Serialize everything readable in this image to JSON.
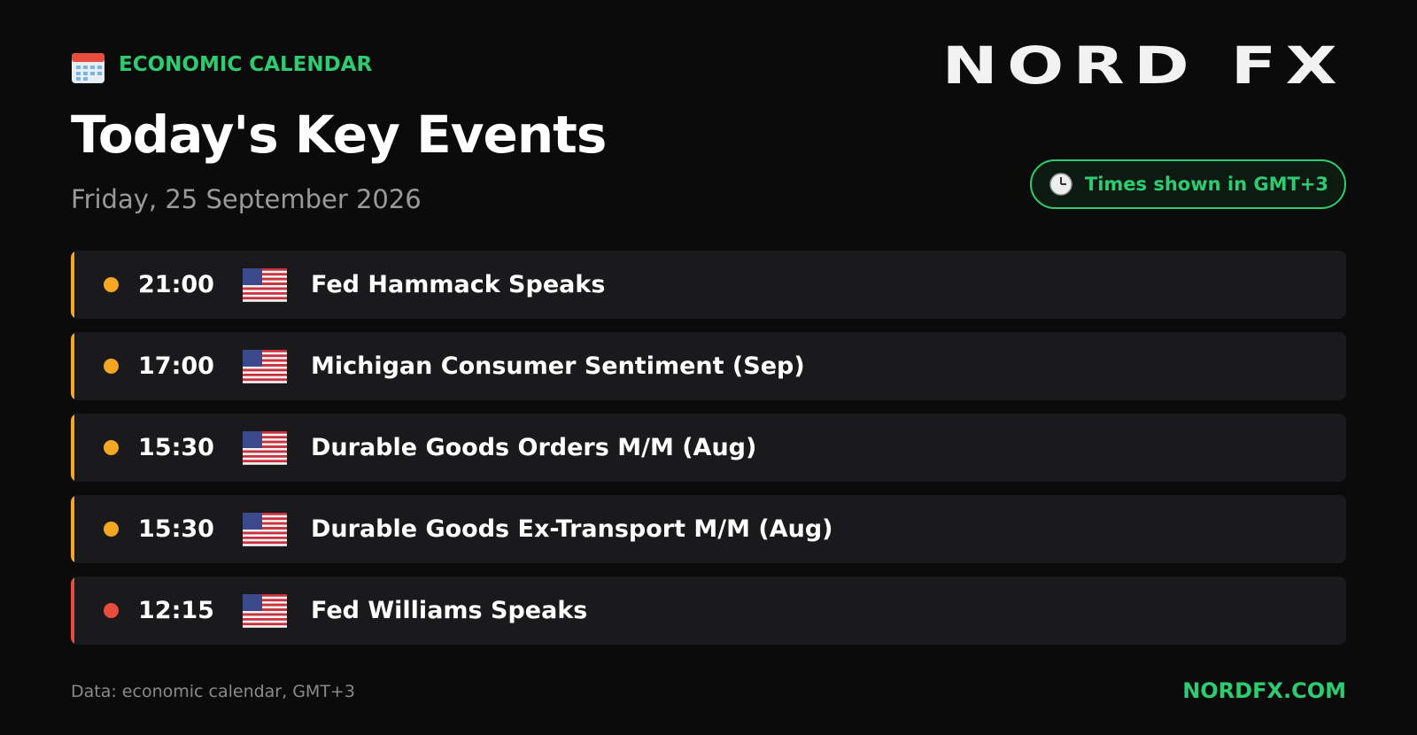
{
  "header": {
    "section_label": "ECONOMIC CALENDAR",
    "title": "Today's Key Events",
    "date": "Friday, 25 September 2026",
    "logo": "NORD FX",
    "timezone_badge": "Times shown in GMT+3"
  },
  "events": [
    {
      "time": "21:00",
      "title": "Fed Hammack Speaks",
      "color": "#f5a623"
    },
    {
      "time": "17:00",
      "title": "Michigan Consumer Sentiment (Sep)",
      "color": "#f5a623"
    },
    {
      "time": "15:30",
      "title": "Durable Goods Orders M/M (Aug)",
      "color": "#f5a623"
    },
    {
      "time": "15:30",
      "title": "Durable Goods Ex-Transport M/M (Aug)",
      "color": "#f5a623"
    },
    {
      "time": "12:15",
      "title": "Fed Williams Speaks",
      "color": "#e74c3c"
    }
  ],
  "footer": {
    "source": "Data: economic calendar, GMT+3",
    "website": "NORDFX.COM"
  }
}
